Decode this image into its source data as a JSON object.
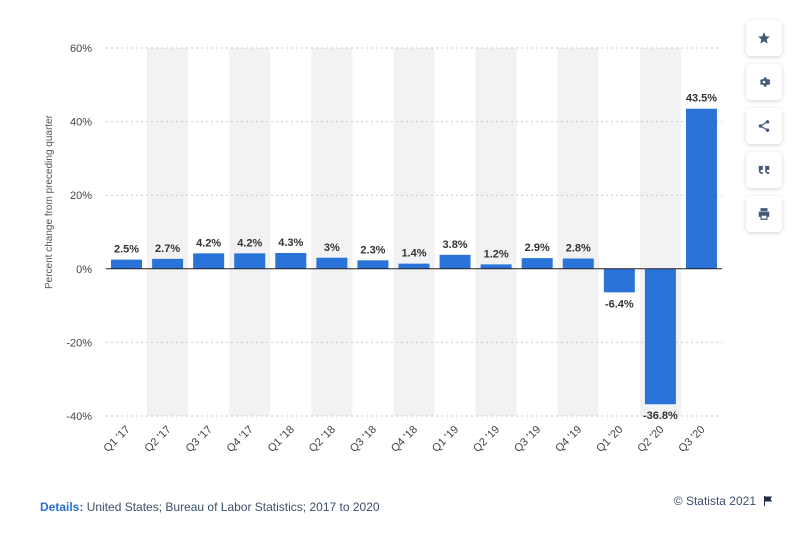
{
  "chart_data": {
    "type": "bar",
    "categories": [
      "Q1 '17",
      "Q2 '17",
      "Q3 '17",
      "Q4 '17",
      "Q1 '18",
      "Q2 '18",
      "Q3 '18",
      "Q4 '18",
      "Q1 '19",
      "Q2 '19",
      "Q3 '19",
      "Q4 '19",
      "Q1 '20",
      "Q2 '20",
      "Q3 '20"
    ],
    "values": [
      2.5,
      2.7,
      4.2,
      4.2,
      4.3,
      3,
      2.3,
      1.4,
      3.8,
      1.2,
      2.9,
      2.8,
      -6.4,
      -36.8,
      43.5
    ],
    "data_labels": [
      "2.5%",
      "2.7%",
      "4.2%",
      "4.2%",
      "4.3%",
      "3%",
      "2.3%",
      "1.4%",
      "3.8%",
      "1.2%",
      "2.9%",
      "2.8%",
      "-6.4%",
      "-36.8%",
      "43.5%"
    ],
    "ylabel": "Percent change from preceding quarter",
    "xlabel": "",
    "ylim": [
      -40,
      60
    ],
    "yticks": [
      60,
      40,
      20,
      0,
      -20,
      -40
    ],
    "ytick_labels": [
      "60%",
      "40%",
      "20%",
      "0%",
      "-20%",
      "-40%"
    ],
    "bar_color": "#2a73d9",
    "alt_band_color": "#f2f2f4",
    "grid": true
  },
  "footer": {
    "details_label": "Details:",
    "details_text": " United States; Bureau of Labor Statistics; 2017 to 2020",
    "copyright": "© Statista 2021"
  },
  "sidebar": {
    "icons": [
      "star-icon",
      "gear-icon",
      "share-icon",
      "quote-icon",
      "print-icon"
    ]
  }
}
